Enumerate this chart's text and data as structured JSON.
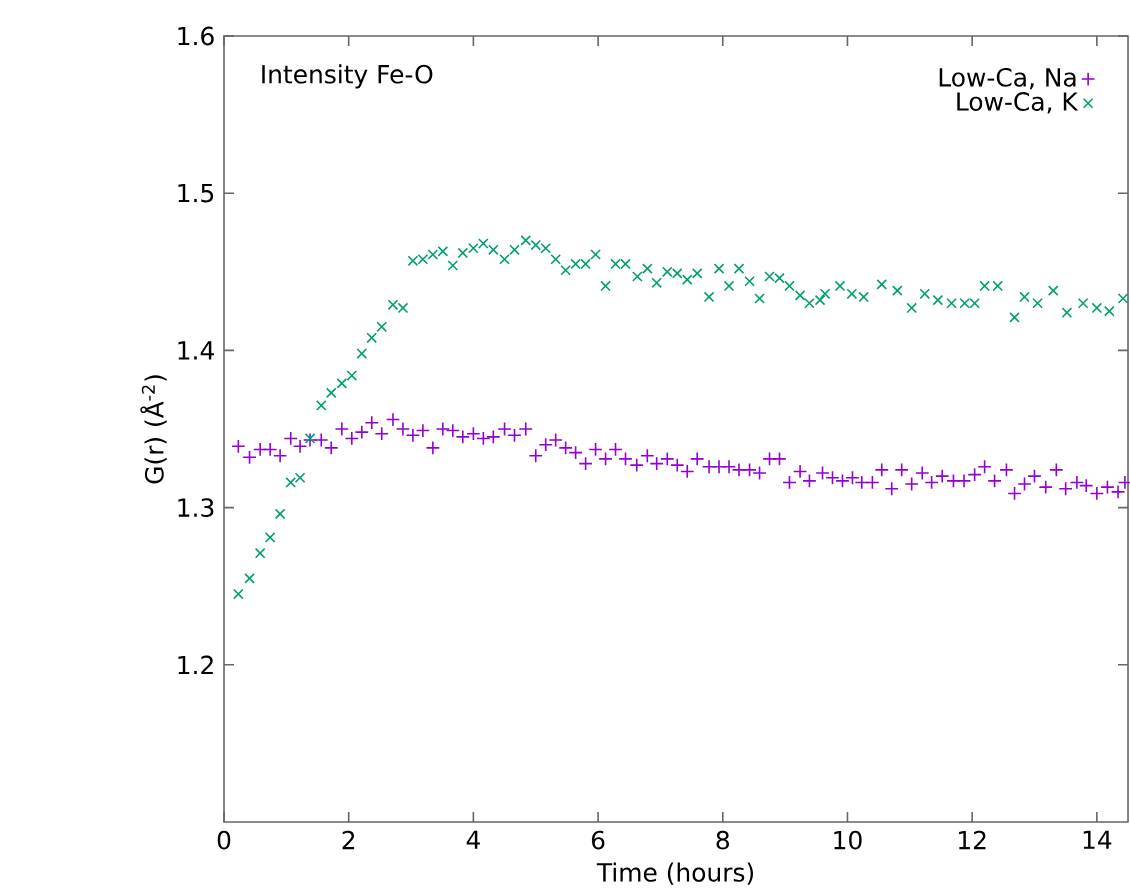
{
  "chart_data": {
    "type": "scatter",
    "xlabel": "Time (hours)",
    "ylabel": "G(r) (Å$^{-2}$)",
    "annotations": [
      "Intensity Fe-O"
    ],
    "xlim": [
      0,
      14.5
    ],
    "ylim": [
      1.1,
      1.6
    ],
    "xticks": [
      0,
      2,
      4,
      6,
      8,
      10,
      12,
      14
    ],
    "yticks": [
      1.2,
      1.3,
      1.4,
      1.5,
      1.6
    ],
    "legend": "top right",
    "grid": false,
    "series": [
      {
        "name": "Low-Ca, Na",
        "color": "#9400d3",
        "marker": "plus",
        "x": [
          0.23,
          0.41,
          0.58,
          0.74,
          0.9,
          1.07,
          1.22,
          1.38,
          1.56,
          1.72,
          1.89,
          2.05,
          2.21,
          2.37,
          2.53,
          2.71,
          2.87,
          3.03,
          3.19,
          3.35,
          3.51,
          3.67,
          3.83,
          4.0,
          4.16,
          4.32,
          4.5,
          4.66,
          4.84,
          5.0,
          5.16,
          5.32,
          5.48,
          5.64,
          5.8,
          5.96,
          6.12,
          6.28,
          6.44,
          6.62,
          6.79,
          6.94,
          7.11,
          7.27,
          7.43,
          7.59,
          7.78,
          7.94,
          8.1,
          8.26,
          8.43,
          8.59,
          8.75,
          8.91,
          9.07,
          9.24,
          9.39,
          9.6,
          9.76,
          9.92,
          10.08,
          10.23,
          10.4,
          10.55,
          10.71,
          10.87,
          11.03,
          11.2,
          11.35,
          11.52,
          11.7,
          11.87,
          12.04,
          12.2,
          12.36,
          12.55,
          12.68,
          12.84,
          13.0,
          13.18,
          13.35,
          13.5,
          13.68,
          13.83,
          14.0,
          14.17,
          14.34,
          14.45
        ],
        "values": [
          1.339,
          1.332,
          1.337,
          1.337,
          1.333,
          1.344,
          1.339,
          1.343,
          1.343,
          1.338,
          1.35,
          1.344,
          1.348,
          1.354,
          1.347,
          1.356,
          1.35,
          1.346,
          1.349,
          1.338,
          1.35,
          1.349,
          1.345,
          1.347,
          1.344,
          1.345,
          1.35,
          1.346,
          1.35,
          1.333,
          1.34,
          1.343,
          1.338,
          1.335,
          1.328,
          1.337,
          1.331,
          1.337,
          1.331,
          1.327,
          1.333,
          1.328,
          1.331,
          1.327,
          1.323,
          1.331,
          1.326,
          1.326,
          1.326,
          1.324,
          1.324,
          1.322,
          1.331,
          1.331,
          1.316,
          1.323,
          1.317,
          1.322,
          1.319,
          1.317,
          1.319,
          1.316,
          1.316,
          1.324,
          1.312,
          1.324,
          1.315,
          1.322,
          1.316,
          1.32,
          1.317,
          1.317,
          1.321,
          1.326,
          1.317,
          1.324,
          1.309,
          1.315,
          1.32,
          1.313,
          1.324,
          1.312,
          1.316,
          1.314,
          1.309,
          1.313,
          1.31,
          1.316
        ]
      },
      {
        "name": "Low-Ca, K",
        "color": "#009e73",
        "marker": "cross",
        "x": [
          0.23,
          0.41,
          0.58,
          0.74,
          0.9,
          1.07,
          1.22,
          1.38,
          1.56,
          1.72,
          1.89,
          2.05,
          2.21,
          2.37,
          2.53,
          2.71,
          2.87,
          3.03,
          3.19,
          3.35,
          3.51,
          3.67,
          3.83,
          4.0,
          4.16,
          4.32,
          4.5,
          4.66,
          4.84,
          5.0,
          5.16,
          5.32,
          5.48,
          5.64,
          5.8,
          5.96,
          6.12,
          6.28,
          6.44,
          6.63,
          6.79,
          6.94,
          7.11,
          7.27,
          7.43,
          7.59,
          7.78,
          7.94,
          8.1,
          8.26,
          8.43,
          8.59,
          8.75,
          8.91,
          9.07,
          9.24,
          9.39,
          9.56,
          9.64,
          9.88,
          10.07,
          10.26,
          10.55,
          10.8,
          11.03,
          11.24,
          11.45,
          11.67,
          11.88,
          12.04,
          12.2,
          12.41,
          12.68,
          12.84,
          13.05,
          13.3,
          13.52,
          13.78,
          14.0,
          14.2,
          14.42
        ],
        "values": [
          1.245,
          1.255,
          1.271,
          1.281,
          1.296,
          1.316,
          1.319,
          1.344,
          1.365,
          1.373,
          1.379,
          1.384,
          1.398,
          1.408,
          1.415,
          1.429,
          1.427,
          1.457,
          1.458,
          1.461,
          1.463,
          1.454,
          1.462,
          1.465,
          1.468,
          1.464,
          1.458,
          1.464,
          1.47,
          1.467,
          1.465,
          1.458,
          1.451,
          1.455,
          1.455,
          1.461,
          1.441,
          1.455,
          1.455,
          1.447,
          1.452,
          1.443,
          1.45,
          1.449,
          1.445,
          1.449,
          1.434,
          1.452,
          1.441,
          1.452,
          1.444,
          1.433,
          1.447,
          1.446,
          1.441,
          1.435,
          1.43,
          1.432,
          1.436,
          1.441,
          1.436,
          1.434,
          1.442,
          1.438,
          1.427,
          1.436,
          1.432,
          1.43,
          1.43,
          1.43,
          1.441,
          1.441,
          1.421,
          1.434,
          1.43,
          1.438,
          1.424,
          1.43,
          1.427,
          1.425,
          1.433
        ]
      }
    ]
  }
}
